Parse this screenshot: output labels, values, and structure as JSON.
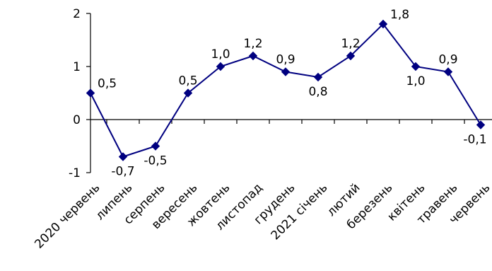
{
  "chart_data": {
    "type": "line",
    "categories": [
      "2020 червень",
      "липень",
      "серпень",
      "вересень",
      "жовтень",
      "листопад",
      "грудень",
      "2021 січень",
      "лютий",
      "березень",
      "квітень",
      "травень",
      "червень"
    ],
    "values": [
      0.5,
      -0.7,
      -0.5,
      0.5,
      1.0,
      1.2,
      0.9,
      0.8,
      1.2,
      1.8,
      1.0,
      0.9,
      -0.1
    ],
    "data_labels": [
      "0,5",
      "-0,7",
      "-0,5",
      "0,5",
      "1,0",
      "1,2",
      "0,9",
      "0,8",
      "1,2",
      "1,8",
      "1,0",
      "0,9",
      "-0,1"
    ],
    "label_position": [
      "right",
      "below",
      "below",
      "above",
      "above",
      "above",
      "above",
      "below",
      "above",
      "right",
      "below",
      "above",
      "below"
    ],
    "y_ticks": [
      2,
      1,
      0,
      -1
    ],
    "ylim": [
      -1,
      2
    ],
    "title": "",
    "xlabel": "",
    "ylabel": "",
    "grid": false,
    "legend": "none",
    "series_color": "#000080",
    "marker": "diamond"
  }
}
